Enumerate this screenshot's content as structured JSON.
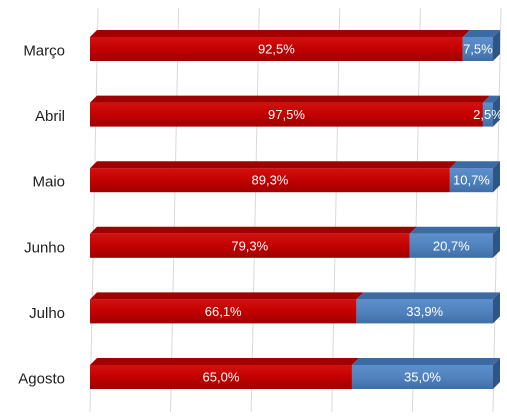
{
  "chart_data": {
    "type": "bar",
    "orientation": "horizontal",
    "stacked": true,
    "percent_stacked": true,
    "categories": [
      "Março",
      "Abril",
      "Maio",
      "Junho",
      "Julho",
      "Agosto"
    ],
    "series": [
      {
        "values": [
          92.5,
          97.5,
          89.3,
          79.3,
          66.1,
          65.0
        ],
        "labels": [
          "92,5%",
          "97,5%",
          "89,3%",
          "79,3%",
          "66,1%",
          "65,0%"
        ],
        "color": "#C00000"
      },
      {
        "values": [
          7.5,
          2.5,
          10.7,
          20.7,
          33.9,
          35.0
        ],
        "labels": [
          "7,5%",
          "2,5%",
          "10,7%",
          "20,7%",
          "33,9%",
          "35,0%"
        ],
        "color": "#4F81BD"
      }
    ],
    "xlim": [
      0,
      100
    ],
    "grid": true,
    "legend": false,
    "title": "",
    "xlabel": "",
    "ylabel": ""
  }
}
